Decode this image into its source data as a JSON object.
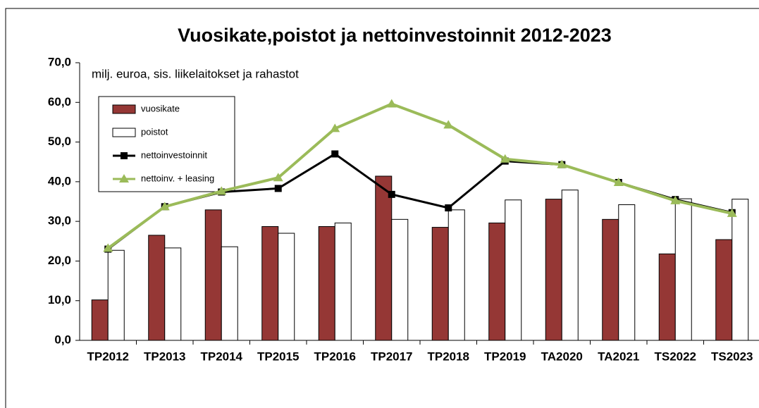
{
  "chart_data": {
    "type": "bar",
    "title": "Vuosikate,poistot ja nettoinvestoinnit 2012-2023",
    "annotation": "milj. euroa, sis. liikelaitokset ja rahastot",
    "categories": [
      "TP2012",
      "TP2013",
      "TP2014",
      "TP2015",
      "TP2016",
      "TP2017",
      "TP2018",
      "TP2019",
      "TA2020",
      "TA2021",
      "TS2022",
      "TS2023"
    ],
    "series": [
      {
        "name": "vuosikate",
        "type": "bar",
        "color": "#953735",
        "values": [
          10.2,
          26.5,
          32.9,
          28.7,
          28.7,
          41.4,
          28.5,
          29.6,
          35.6,
          30.5,
          21.8,
          25.4
        ]
      },
      {
        "name": "poistot",
        "type": "bar",
        "color": "#ffffff",
        "values": [
          22.7,
          23.3,
          23.6,
          27.0,
          29.6,
          30.5,
          32.9,
          35.4,
          37.9,
          34.2,
          35.7,
          35.6
        ]
      },
      {
        "name": "nettoinvestoinnit",
        "type": "line",
        "marker": "square",
        "color": "#000000",
        "values": [
          23.0,
          33.7,
          37.4,
          38.3,
          47.0,
          36.8,
          33.4,
          45.2,
          44.3,
          39.8,
          35.5,
          32.2
        ]
      },
      {
        "name": "nettoinv. + leasing",
        "type": "line",
        "marker": "triangle",
        "color": "#9bbb59",
        "values": [
          23.2,
          33.7,
          37.6,
          41.0,
          53.4,
          59.6,
          54.3,
          45.7,
          44.3,
          39.8,
          35.2,
          32.0
        ]
      }
    ],
    "ylim": [
      0,
      70
    ],
    "yticks": [
      {
        "value": 0,
        "label": "0,0"
      },
      {
        "value": 10,
        "label": "10,0"
      },
      {
        "value": 20,
        "label": "20,0"
      },
      {
        "value": 30,
        "label": "30,0"
      },
      {
        "value": 40,
        "label": "40,0"
      },
      {
        "value": 50,
        "label": "50,0"
      },
      {
        "value": 60,
        "label": "60,0"
      },
      {
        "value": 70,
        "label": "70,0"
      }
    ]
  }
}
